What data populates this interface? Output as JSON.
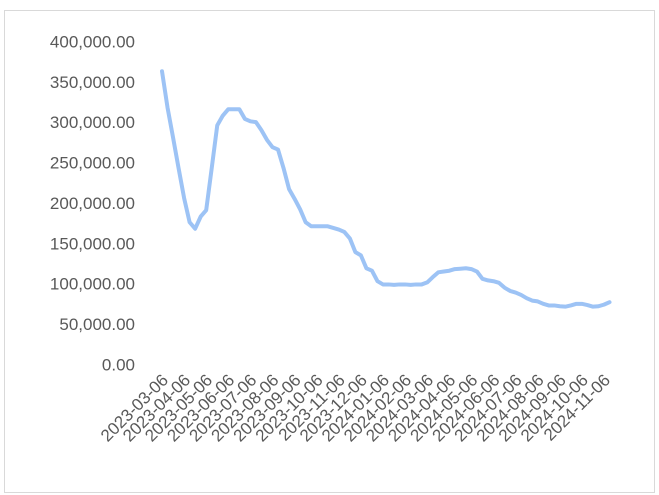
{
  "chart_data": {
    "type": "line",
    "categories": [
      "2023-03-06",
      null,
      null,
      null,
      "2023-04-06",
      null,
      null,
      null,
      "2023-05-06",
      null,
      null,
      null,
      "2023-06-06",
      null,
      null,
      null,
      "2023-07-06",
      null,
      null,
      null,
      "2023-08-06",
      null,
      null,
      null,
      "2023-09-06",
      null,
      null,
      null,
      "2023-10-06",
      null,
      null,
      null,
      "2023-11-06",
      null,
      null,
      null,
      "2023-12-06",
      null,
      null,
      null,
      "2024-01-06",
      null,
      null,
      null,
      "2024-02-06",
      null,
      null,
      null,
      "2024-03-06",
      null,
      null,
      null,
      "2024-04-06",
      null,
      null,
      null,
      "2024-05-06",
      null,
      null,
      null,
      "2024-06-06",
      null,
      null,
      null,
      "2024-07-06",
      null,
      null,
      null,
      "2024-08-06",
      null,
      null,
      null,
      "2024-09-06",
      null,
      null,
      null,
      "2024-10-06",
      null,
      null,
      null,
      "2024-11-06",
      null
    ],
    "values": [
      365000,
      320000,
      283000,
      245000,
      208000,
      178000,
      170000,
      185000,
      193000,
      245000,
      298000,
      310000,
      318000,
      318000,
      318000,
      306000,
      303000,
      302000,
      292000,
      280000,
      271000,
      268000,
      245000,
      219000,
      207000,
      194000,
      178000,
      173000,
      173000,
      173000,
      173000,
      171000,
      169000,
      166000,
      158000,
      141000,
      137000,
      121000,
      118000,
      105000,
      101000,
      101000,
      100500,
      101000,
      101000,
      100500,
      101000,
      101000,
      103500,
      110000,
      116000,
      117000,
      118000,
      120000,
      120500,
      121000,
      120000,
      117000,
      108000,
      106000,
      105000,
      103000,
      97000,
      93000,
      91000,
      88000,
      84000,
      81000,
      80000,
      77000,
      75000,
      75000,
      74000,
      73500,
      75000,
      77000,
      77000,
      75500,
      73500,
      74000,
      76000,
      79000
    ],
    "color": "#9dc3f5",
    "ylim": [
      0,
      400000
    ],
    "yticks": [
      {
        "value": 0,
        "label": "0.00"
      },
      {
        "value": 50000,
        "label": "50,000.00"
      },
      {
        "value": 100000,
        "label": "100,000.00"
      },
      {
        "value": 150000,
        "label": "150,000.00"
      },
      {
        "value": 200000,
        "label": "200,000.00"
      },
      {
        "value": 250000,
        "label": "250,000.00"
      },
      {
        "value": 300000,
        "label": "300,000.00"
      },
      {
        "value": 350000,
        "label": "350,000.00"
      },
      {
        "value": 400000,
        "label": "400,000.00"
      }
    ]
  }
}
